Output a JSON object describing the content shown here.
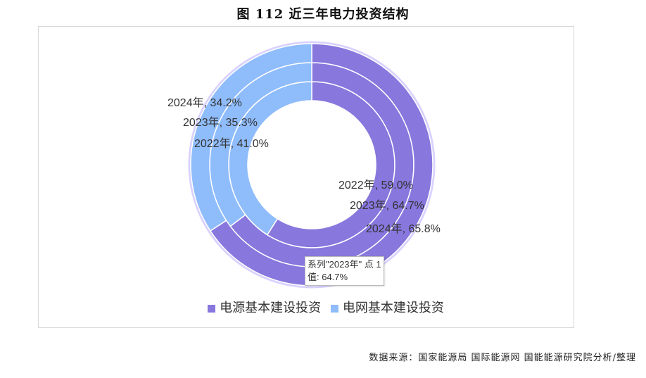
{
  "title": "图 112 近三年电力投资结构",
  "source": "数据来源：国家能源局 国际能源网 国能能源研究院分析/整理",
  "tooltip": {
    "line1": "系列\"2023年\" 点 1",
    "line2": "值: 64.7%"
  },
  "colors": {
    "power_source": "#8877dd",
    "grid": "#8fbcfb"
  },
  "chart_data": {
    "type": "pie",
    "variant": "multi-ring donut",
    "categories": [
      "电源基本建设投资",
      "电网基本建设投资"
    ],
    "series": [
      {
        "name": "2022年",
        "values": [
          59.0,
          41.0
        ],
        "labels": [
          "2022年, 59.0%",
          "2022年, 41.0%"
        ]
      },
      {
        "name": "2023年",
        "values": [
          64.7,
          35.3
        ],
        "labels": [
          "2023年, 64.7%",
          "2023年, 35.3%"
        ]
      },
      {
        "name": "2024年",
        "values": [
          65.8,
          34.2
        ],
        "labels": [
          "2024年, 65.8%",
          "2024年, 34.2%"
        ]
      }
    ],
    "legend": {
      "position": "bottom",
      "items": [
        "电源基本建设投资",
        "电网基本建设投资"
      ]
    }
  }
}
